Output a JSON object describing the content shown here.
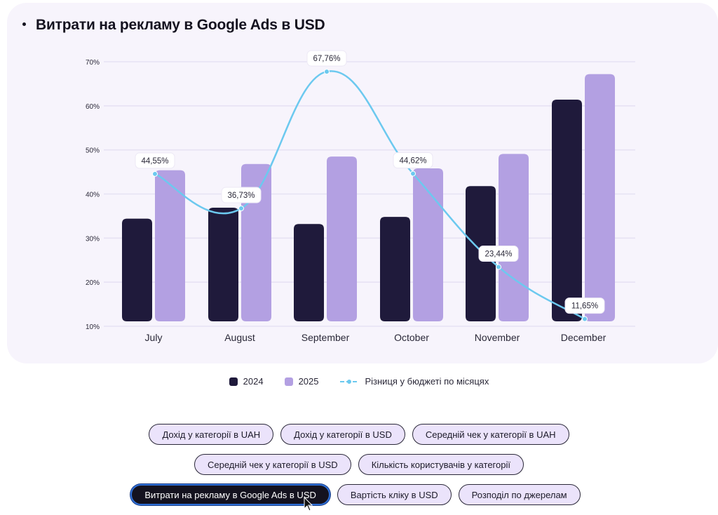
{
  "chart_data": {
    "type": "bar",
    "title": "Витрати на рекламу в Google Ads в USD",
    "xlabel": "",
    "ylabel": "",
    "ylim": [
      10,
      70
    ],
    "yticks": [
      "10%",
      "20%",
      "30%",
      "40%",
      "50%",
      "60%",
      "70%"
    ],
    "ytick_values": [
      10,
      20,
      30,
      40,
      50,
      60,
      70
    ],
    "grid": true,
    "categories": [
      "July",
      "August",
      "September",
      "October",
      "November",
      "December"
    ],
    "series": [
      {
        "name": "2024",
        "type": "bar",
        "color": "#1f1a3b",
        "values": [
          34.4,
          36.9,
          33.2,
          34.8,
          41.8,
          61.4
        ]
      },
      {
        "name": "2025",
        "type": "bar",
        "color": "#b3a0e2",
        "values": [
          45.4,
          46.8,
          48.5,
          45.8,
          49.1,
          67.2
        ]
      },
      {
        "name": "Різниця у бюджеті по місяцях",
        "type": "line",
        "color": "#6cc9ef",
        "values": [
          44.55,
          36.73,
          67.76,
          44.62,
          23.44,
          11.65
        ],
        "labels": [
          "44,55%",
          "36,73%",
          "67,76%",
          "44,62%",
          "23,44%",
          "11,65%"
        ]
      }
    ],
    "legend_position": "bottom"
  },
  "legend": [
    {
      "label": "2024",
      "color": "#1f1a3b"
    },
    {
      "label": "2025",
      "color": "#b3a0e2"
    },
    {
      "label": "Різниця у бюджеті по місяцях",
      "color": "#6cc9ef"
    }
  ],
  "buttons": {
    "row1": [
      "Дохід у категорії в UAH",
      "Дохід у категорії в USD",
      "Середній чек у категорії в UAH"
    ],
    "row2": [
      "Середній чек у категорії в USD",
      "Кількість користувачів у категорії"
    ],
    "row3": [
      "Витрати на рекламу в Google Ads в USD",
      "Вартість кліку в USD",
      "Розподіл по джерелам"
    ],
    "active": "Витрати на рекламу в Google Ads в USD"
  }
}
